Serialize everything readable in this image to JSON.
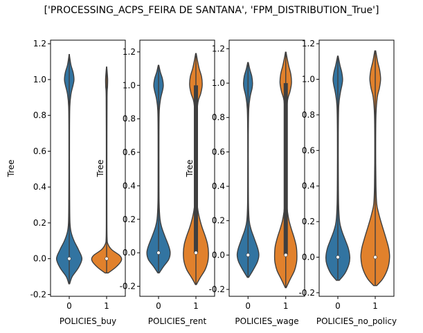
{
  "figure": {
    "suptitle": "['PROCESSING_ACPS_FEIRA DE SANTANA', 'FPM_DISTRIBUTION_True']"
  },
  "colors": {
    "blue": "#3274a1",
    "orange": "#e1812c",
    "box": "#3f3f3f"
  },
  "chart_data": [
    {
      "type": "violin",
      "xlabel": "POLICIES_buy",
      "ylabel": "Tree",
      "ylim": [
        -0.21,
        1.22
      ],
      "yticks": [
        -0.2,
        0.0,
        0.2,
        0.4,
        0.6,
        0.8,
        1.0,
        1.2
      ],
      "categories": [
        "0",
        "1"
      ],
      "violins": [
        {
          "category": "0",
          "color": "blue",
          "range": [
            -0.14,
            1.14
          ],
          "median": 0.0,
          "q1": 0.0,
          "q3": 0.0,
          "density": [
            [
              -0.14,
              0.03
            ],
            [
              -0.1,
              0.2
            ],
            [
              -0.05,
              0.62
            ],
            [
              0.0,
              0.85
            ],
            [
              0.05,
              0.62
            ],
            [
              0.1,
              0.32
            ],
            [
              0.15,
              0.12
            ],
            [
              0.2,
              0.05
            ],
            [
              0.3,
              0.03
            ],
            [
              0.5,
              0.02
            ],
            [
              0.7,
              0.02
            ],
            [
              0.85,
              0.04
            ],
            [
              0.92,
              0.12
            ],
            [
              0.97,
              0.26
            ],
            [
              1.0,
              0.32
            ],
            [
              1.04,
              0.26
            ],
            [
              1.08,
              0.12
            ],
            [
              1.12,
              0.04
            ],
            [
              1.14,
              0.01
            ]
          ]
        },
        {
          "category": "1",
          "color": "orange",
          "range": [
            -0.08,
            1.07
          ],
          "median": 0.0,
          "q1": 0.0,
          "q3": 0.0,
          "density": [
            [
              -0.08,
              0.1
            ],
            [
              -0.05,
              0.58
            ],
            [
              -0.02,
              0.92
            ],
            [
              0.0,
              1.0
            ],
            [
              0.02,
              0.85
            ],
            [
              0.05,
              0.35
            ],
            [
              0.08,
              0.1
            ],
            [
              0.12,
              0.03
            ],
            [
              0.3,
              0.02
            ],
            [
              0.6,
              0.02
            ],
            [
              0.9,
              0.03
            ],
            [
              0.96,
              0.06
            ],
            [
              1.0,
              0.07
            ],
            [
              1.04,
              0.04
            ],
            [
              1.07,
              0.01
            ]
          ]
        }
      ]
    },
    {
      "type": "violin",
      "xlabel": "POLICIES_rent",
      "ylabel": "Tree",
      "ylim": [
        -0.26,
        1.27
      ],
      "yticks": [
        -0.2,
        0.0,
        0.2,
        0.4,
        0.6,
        0.8,
        1.0,
        1.2
      ],
      "categories": [
        "0",
        "1"
      ],
      "violins": [
        {
          "category": "0",
          "color": "blue",
          "range": [
            -0.12,
            1.12
          ],
          "median": 0.0,
          "q1": 0.0,
          "q3": 0.0,
          "density": [
            [
              -0.12,
              0.05
            ],
            [
              -0.08,
              0.35
            ],
            [
              -0.04,
              0.68
            ],
            [
              0.0,
              0.78
            ],
            [
              0.04,
              0.68
            ],
            [
              0.1,
              0.42
            ],
            [
              0.15,
              0.22
            ],
            [
              0.2,
              0.1
            ],
            [
              0.3,
              0.04
            ],
            [
              0.5,
              0.03
            ],
            [
              0.7,
              0.03
            ],
            [
              0.85,
              0.05
            ],
            [
              0.92,
              0.14
            ],
            [
              0.97,
              0.27
            ],
            [
              1.0,
              0.32
            ],
            [
              1.04,
              0.26
            ],
            [
              1.08,
              0.12
            ],
            [
              1.12,
              0.02
            ]
          ]
        },
        {
          "category": "1",
          "color": "orange",
          "range": [
            -0.19,
            1.19
          ],
          "median": 0.0,
          "q1": 0.0,
          "q3": 1.0,
          "density": [
            [
              -0.19,
              0.03
            ],
            [
              -0.15,
              0.28
            ],
            [
              -0.1,
              0.62
            ],
            [
              -0.05,
              0.8
            ],
            [
              0.0,
              0.84
            ],
            [
              0.05,
              0.78
            ],
            [
              0.1,
              0.62
            ],
            [
              0.15,
              0.42
            ],
            [
              0.2,
              0.26
            ],
            [
              0.25,
              0.14
            ],
            [
              0.3,
              0.08
            ],
            [
              0.4,
              0.05
            ],
            [
              0.6,
              0.04
            ],
            [
              0.8,
              0.06
            ],
            [
              0.9,
              0.14
            ],
            [
              0.95,
              0.32
            ],
            [
              1.0,
              0.42
            ],
            [
              1.05,
              0.38
            ],
            [
              1.1,
              0.22
            ],
            [
              1.15,
              0.1
            ],
            [
              1.19,
              0.02
            ]
          ]
        }
      ]
    },
    {
      "type": "violin",
      "xlabel": "POLICIES_wage",
      "ylabel": "Tree",
      "ylim": [
        -0.24,
        1.25
      ],
      "yticks": [
        -0.2,
        0.0,
        0.2,
        0.4,
        0.6,
        0.8,
        1.0,
        1.2
      ],
      "categories": [
        "0",
        "1"
      ],
      "violins": [
        {
          "category": "0",
          "color": "blue",
          "range": [
            -0.13,
            1.12
          ],
          "median": 0.0,
          "q1": 0.0,
          "q3": 0.0,
          "density": [
            [
              -0.13,
              0.04
            ],
            [
              -0.09,
              0.32
            ],
            [
              -0.04,
              0.62
            ],
            [
              0.0,
              0.72
            ],
            [
              0.04,
              0.64
            ],
            [
              0.1,
              0.4
            ],
            [
              0.15,
              0.2
            ],
            [
              0.2,
              0.08
            ],
            [
              0.3,
              0.03
            ],
            [
              0.5,
              0.02
            ],
            [
              0.7,
              0.02
            ],
            [
              0.85,
              0.05
            ],
            [
              0.92,
              0.14
            ],
            [
              0.97,
              0.27
            ],
            [
              1.0,
              0.3
            ],
            [
              1.04,
              0.25
            ],
            [
              1.08,
              0.12
            ],
            [
              1.12,
              0.02
            ]
          ]
        },
        {
          "category": "1",
          "color": "orange",
          "range": [
            -0.19,
            1.18
          ],
          "median": 0.0,
          "q1": 0.0,
          "q3": 1.0,
          "density": [
            [
              -0.19,
              0.03
            ],
            [
              -0.14,
              0.3
            ],
            [
              -0.09,
              0.58
            ],
            [
              -0.04,
              0.72
            ],
            [
              0.0,
              0.74
            ],
            [
              0.05,
              0.7
            ],
            [
              0.1,
              0.56
            ],
            [
              0.15,
              0.38
            ],
            [
              0.2,
              0.22
            ],
            [
              0.25,
              0.12
            ],
            [
              0.3,
              0.07
            ],
            [
              0.4,
              0.04
            ],
            [
              0.6,
              0.03
            ],
            [
              0.8,
              0.05
            ],
            [
              0.9,
              0.12
            ],
            [
              0.95,
              0.28
            ],
            [
              1.0,
              0.38
            ],
            [
              1.05,
              0.34
            ],
            [
              1.1,
              0.2
            ],
            [
              1.15,
              0.08
            ],
            [
              1.18,
              0.02
            ]
          ]
        }
      ]
    },
    {
      "type": "violin",
      "xlabel": "POLICIES_no_policy",
      "ylabel": "",
      "ylim": [
        -0.22,
        1.22
      ],
      "yticks": [
        -0.2,
        0.0,
        0.2,
        0.4,
        0.6,
        0.8,
        1.0,
        1.2
      ],
      "categories": [
        "0",
        "1"
      ],
      "violins": [
        {
          "category": "0",
          "color": "blue",
          "range": [
            -0.13,
            1.13
          ],
          "median": 0.0,
          "q1": 0.0,
          "q3": 0.0,
          "density": [
            [
              -0.13,
              0.1
            ],
            [
              -0.09,
              0.48
            ],
            [
              -0.04,
              0.74
            ],
            [
              0.0,
              0.8
            ],
            [
              0.05,
              0.7
            ],
            [
              0.1,
              0.48
            ],
            [
              0.15,
              0.26
            ],
            [
              0.2,
              0.12
            ],
            [
              0.3,
              0.05
            ],
            [
              0.5,
              0.03
            ],
            [
              0.7,
              0.03
            ],
            [
              0.85,
              0.06
            ],
            [
              0.92,
              0.16
            ],
            [
              0.97,
              0.28
            ],
            [
              1.0,
              0.32
            ],
            [
              1.04,
              0.26
            ],
            [
              1.08,
              0.14
            ],
            [
              1.13,
              0.02
            ]
          ]
        },
        {
          "category": "1",
          "color": "orange",
          "range": [
            -0.16,
            1.16
          ],
          "median": 0.0,
          "q1": 0.0,
          "q3": 0.0,
          "density": [
            [
              -0.16,
              0.1
            ],
            [
              -0.12,
              0.52
            ],
            [
              -0.06,
              0.85
            ],
            [
              0.0,
              0.96
            ],
            [
              0.05,
              0.9
            ],
            [
              0.1,
              0.74
            ],
            [
              0.15,
              0.56
            ],
            [
              0.2,
              0.38
            ],
            [
              0.25,
              0.22
            ],
            [
              0.3,
              0.1
            ],
            [
              0.4,
              0.05
            ],
            [
              0.6,
              0.03
            ],
            [
              0.8,
              0.05
            ],
            [
              0.9,
              0.14
            ],
            [
              0.95,
              0.28
            ],
            [
              1.0,
              0.36
            ],
            [
              1.05,
              0.3
            ],
            [
              1.1,
              0.16
            ],
            [
              1.16,
              0.03
            ]
          ]
        }
      ]
    }
  ]
}
